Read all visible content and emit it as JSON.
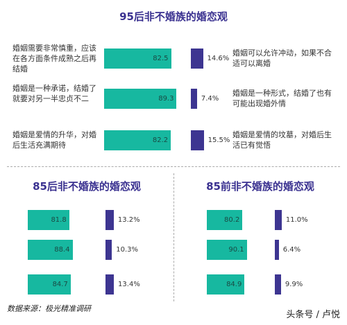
{
  "chart_data": [
    {
      "type": "bar",
      "title": "95后非不婚族的婚恋观",
      "categories": [
        "婚姻需要非常慎重，应该在各方面条件成熟之后再结婚",
        "婚姻是一种承诺，结婚了就要对另一半忠贞不二",
        "婚姻是爱情的升华，对婚后生活充满期待"
      ],
      "values": [
        82.5,
        89.3,
        82.2
      ],
      "value_labels": [
        "82.5",
        "89.3",
        "82.2"
      ],
      "opposite_categories": [
        "婚姻可以允许冲动，如果不合适可以离婚",
        "婚姻是一种形式，结婚了也有可能出现婚外情",
        "婚姻是爱情的坟墓，对婚后生活已有觉悟"
      ],
      "opposite_values": [
        14.6,
        7.4,
        15.5
      ],
      "opposite_labels": [
        "14.6%",
        "7.4%",
        "15.5%"
      ],
      "colors": {
        "left": "#17b8a0",
        "right": "#3d3591"
      }
    },
    {
      "type": "bar",
      "title": "85后非不婚族的婚恋观",
      "values": [
        81.8,
        88.4,
        84.7
      ],
      "value_labels": [
        "81.8",
        "88.4",
        "84.7"
      ],
      "opposite_values": [
        13.2,
        10.3,
        13.4
      ],
      "opposite_labels": [
        "13.2%",
        "10.3%",
        "13.4%"
      ],
      "colors": {
        "left": "#17b8a0",
        "right": "#3d3591"
      }
    },
    {
      "type": "bar",
      "title": "85前非不婚族的婚恋观",
      "values": [
        80.2,
        90.1,
        84.9
      ],
      "value_labels": [
        "80.2",
        "90.1",
        "84.9"
      ],
      "opposite_values": [
        11.0,
        6.4,
        9.9
      ],
      "opposite_labels": [
        "11.0%",
        "6.4%",
        "9.9%"
      ],
      "colors": {
        "left": "#17b8a0",
        "right": "#3d3591"
      }
    }
  ],
  "source": "数据来源：极光精准调研",
  "watermark": "头条号 / 卢悦"
}
